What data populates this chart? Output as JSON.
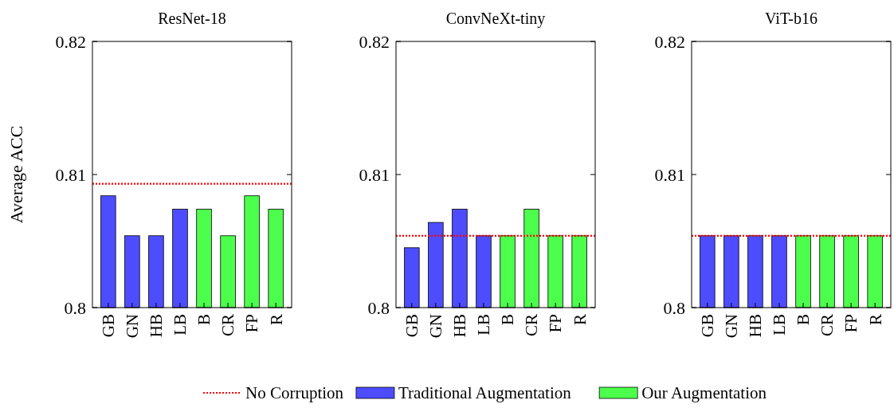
{
  "chart_data": [
    {
      "type": "bar",
      "title": "ResNet-18",
      "ylabel": "Average ACC",
      "categories": [
        "GB",
        "GN",
        "HB",
        "LB",
        "B",
        "CR",
        "FP",
        "R"
      ],
      "ylim": [
        0.8,
        0.82
      ],
      "yticks": [
        0.8,
        0.81,
        0.82
      ],
      "legend": "bottom",
      "ref_lines": [
        {
          "axis": "y",
          "value": 0.8093,
          "label": "No Corruption",
          "color": "#ff0000",
          "line_style": "dotted"
        }
      ],
      "series": [
        {
          "name": "Traditional Augmentation",
          "color": "#4d4dff",
          "values": [
            0.8084,
            0.8054,
            0.8054,
            0.8074,
            null,
            null,
            null,
            null
          ]
        },
        {
          "name": "Our Augmentation",
          "color": "#4dff4d",
          "values": [
            null,
            null,
            null,
            null,
            0.8074,
            0.8054,
            0.8084,
            0.8074
          ]
        }
      ]
    },
    {
      "type": "bar",
      "title": "ConvNeXt-tiny",
      "categories": [
        "GB",
        "GN",
        "HB",
        "LB",
        "B",
        "CR",
        "FP",
        "R"
      ],
      "ylim": [
        0.8,
        0.82
      ],
      "yticks": [
        0.8,
        0.81,
        0.82
      ],
      "ref_lines": [
        {
          "axis": "y",
          "value": 0.8054,
          "color": "#ff0000",
          "line_style": "dotted"
        }
      ],
      "series": [
        {
          "color": "#4d4dff",
          "values": [
            0.8045,
            0.8064,
            0.8074,
            0.8054,
            null,
            null,
            null,
            null
          ]
        },
        {
          "color": "#4dff4d",
          "values": [
            null,
            null,
            null,
            null,
            0.8054,
            0.8074,
            0.8054,
            0.8054
          ]
        }
      ]
    },
    {
      "type": "bar",
      "title": "ViT-b16",
      "categories": [
        "GB",
        "GN",
        "HB",
        "LB",
        "B",
        "CR",
        "FP",
        "R"
      ],
      "ylim": [
        0.8,
        0.82
      ],
      "yticks": [
        0.8,
        0.81,
        0.82
      ],
      "ref_lines": [
        {
          "axis": "y",
          "value": 0.8054,
          "color": "#ff0000",
          "line_style": "dotted"
        }
      ],
      "series": [
        {
          "color": "#4d4dff",
          "values": [
            0.8054,
            0.8054,
            0.8054,
            0.8054,
            null,
            null,
            null,
            null
          ]
        },
        {
          "color": "#4dff4d",
          "values": [
            null,
            null,
            null,
            null,
            0.8054,
            0.8054,
            0.8054,
            0.8054
          ]
        }
      ]
    }
  ]
}
